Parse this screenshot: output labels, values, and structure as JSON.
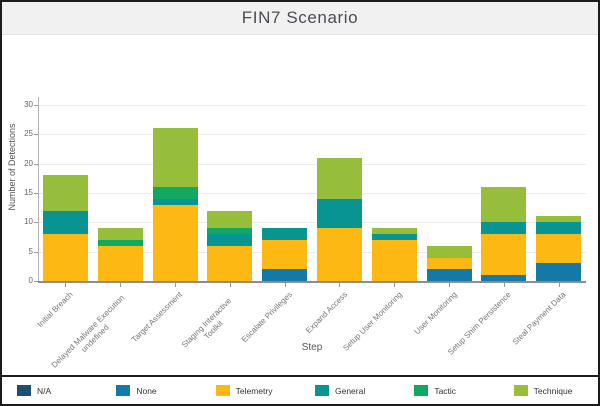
{
  "title": "FIN7 Scenario",
  "chart_data": {
    "type": "bar",
    "stacked": true,
    "title": "FIN7 Scenario",
    "xlabel": "Step",
    "ylabel": "Number of Detections",
    "ylim": [
      0,
      32
    ],
    "yticks": [
      0,
      5,
      10,
      15,
      20,
      25,
      30
    ],
    "grid": true,
    "legend_position": "bottom",
    "categories": [
      "Initial Breach",
      "Delayed Malware Execution undefined",
      "Target Assessment",
      "Staging Interactive Toolkit",
      "Escalate Privileges",
      "Expand Access",
      "Setup User Monitoring",
      "User Monitoring",
      "Setup Shim Persistence",
      "Steal Payment Data"
    ],
    "series": [
      {
        "name": "N/A",
        "color": "#1d4f6e",
        "values": [
          0,
          0,
          0,
          0,
          0,
          0,
          0,
          0,
          0,
          0
        ]
      },
      {
        "name": "None",
        "color": "#1579a5",
        "values": [
          0,
          0,
          0,
          0,
          2,
          0,
          0,
          2,
          1,
          3
        ]
      },
      {
        "name": "Telemetry",
        "color": "#fdb813",
        "values": [
          8,
          6,
          13,
          6,
          5,
          9,
          7,
          2,
          7,
          5
        ]
      },
      {
        "name": "General",
        "color": "#089490",
        "values": [
          4,
          0,
          1,
          2,
          2,
          5,
          1,
          0,
          2,
          2
        ]
      },
      {
        "name": "Tactic",
        "color": "#10a95f",
        "values": [
          0,
          1,
          2,
          1,
          0,
          0,
          0,
          0,
          0,
          0
        ]
      },
      {
        "name": "Technique",
        "color": "#96be3a",
        "values": [
          6,
          2,
          10,
          3,
          0,
          7,
          1,
          2,
          6,
          1
        ]
      }
    ],
    "totals": [
      18,
      9,
      26,
      12,
      9,
      21,
      9,
      6,
      16,
      11
    ]
  }
}
